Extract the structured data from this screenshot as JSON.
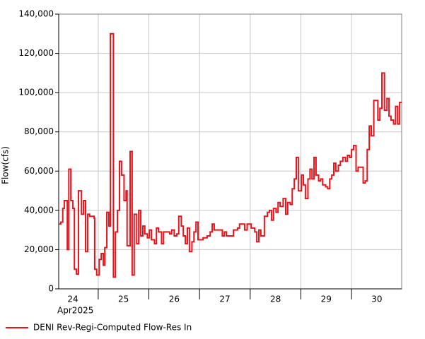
{
  "chart_data": {
    "type": "line",
    "step": "post",
    "y_label": "Flow(cfs)",
    "x_sublabel": "Apr2025",
    "x": [
      23.72,
      23.76,
      23.8,
      23.83,
      23.89,
      23.92,
      23.96,
      24.0,
      24.03,
      24.07,
      24.11,
      24.17,
      24.21,
      24.25,
      24.29,
      24.33,
      24.42,
      24.43,
      24.47,
      24.52,
      24.56,
      24.6,
      24.63,
      24.67,
      24.71,
      24.74,
      24.8,
      24.84,
      24.88,
      24.92,
      24.96,
      25.01,
      25.05,
      25.07,
      25.13,
      25.17,
      25.21,
      25.26,
      25.3,
      25.34,
      25.38,
      25.42,
      25.47,
      25.51,
      25.55,
      25.61,
      25.65,
      25.69,
      25.75,
      25.79,
      25.91,
      25.95,
      26.0,
      26.05,
      26.09,
      26.14,
      26.18,
      26.22,
      26.26,
      26.3,
      26.35,
      26.39,
      26.43,
      26.47,
      26.57,
      26.65,
      26.71,
      26.75,
      26.79,
      26.95,
      26.99,
      27.03,
      27.17,
      27.25,
      27.29,
      27.39,
      27.44,
      27.52,
      27.59,
      27.63,
      27.67,
      27.71,
      27.78,
      27.84,
      27.88,
      27.92,
      27.96,
      28.01,
      28.05,
      28.09,
      28.15,
      28.2,
      28.24,
      28.29,
      28.33,
      28.37,
      28.41,
      28.45,
      28.51,
      28.55,
      28.59,
      28.64,
      28.68,
      28.72,
      28.76,
      28.8,
      28.85,
      28.89,
      28.93,
      28.99,
      29.03,
      29.07,
      29.11,
      29.15,
      29.19,
      29.24,
      29.28,
      29.33,
      29.38,
      29.42,
      29.46,
      29.5,
      29.54,
      29.59,
      29.63,
      29.73,
      29.77,
      29.81,
      29.85,
      29.89,
      29.94,
      30.02,
      30.06,
      30.1,
      30.15,
      30.2,
      30.24,
      30.28,
      30.33,
      30.37,
      30.41,
      30.45
    ],
    "series": [
      {
        "name": "DENI Rev-Regi-Computed Flow-Res In",
        "color": "#e8141c",
        "values": [
          33000,
          34000,
          41000,
          45000,
          20000,
          61000,
          45000,
          41000,
          10000,
          7500,
          50000,
          38000,
          45000,
          19000,
          38000,
          37000,
          36000,
          10000,
          7000,
          15000,
          18000,
          12000,
          21000,
          39000,
          32000,
          130000,
          6000,
          29000,
          40000,
          65000,
          58000,
          45000,
          50000,
          22000,
          70000,
          7000,
          38000,
          23000,
          40000,
          27000,
          32000,
          28000,
          26000,
          30000,
          25000,
          23000,
          31000,
          29000,
          23000,
          29000,
          28000,
          30000,
          27000,
          28000,
          37000,
          32000,
          27000,
          23000,
          31000,
          19000,
          24000,
          29000,
          34000,
          25000,
          26000,
          27000,
          29000,
          33000,
          30000,
          27000,
          29000,
          27000,
          30000,
          31000,
          33000,
          30000,
          33000,
          31000,
          29000,
          24000,
          30000,
          27000,
          37000,
          39000,
          40000,
          35000,
          41000,
          39000,
          44000,
          42000,
          46000,
          38000,
          44000,
          43000,
          51000,
          56000,
          67000,
          50000,
          58000,
          53000,
          46000,
          56000,
          61000,
          56000,
          67000,
          58000,
          55000,
          56000,
          53000,
          52000,
          51000,
          56000,
          58000,
          64000,
          60000,
          63000,
          65000,
          67000,
          65000,
          68000,
          67000,
          71000,
          73000,
          60000,
          62000,
          54000,
          55000,
          71000,
          83000,
          78000,
          96000,
          86000,
          92000,
          110000,
          91000,
          97000,
          88000,
          86000,
          84000,
          93000,
          84000,
          95000
        ]
      }
    ],
    "xlim": [
      23.72,
      30.49
    ],
    "xticks": [
      24,
      25,
      26,
      27,
      28,
      29,
      30
    ],
    "xgrid": [
      24.5,
      25.5,
      26.5,
      27.5,
      28.5,
      29.5
    ],
    "ylim": [
      0,
      140000
    ],
    "yticks": [
      0,
      {
        "value": 20000,
        "label": "20,000"
      },
      {
        "value": 40000,
        "label": "40,000"
      },
      {
        "value": 60000,
        "label": "60,000"
      },
      {
        "value": 80000,
        "label": "80,000"
      },
      {
        "value": 100000,
        "label": "100,000"
      },
      {
        "value": 120000,
        "label": "120,000"
      },
      {
        "value": 140000,
        "label": "140,000"
      }
    ],
    "grid": true,
    "legend": "bottom-left"
  }
}
